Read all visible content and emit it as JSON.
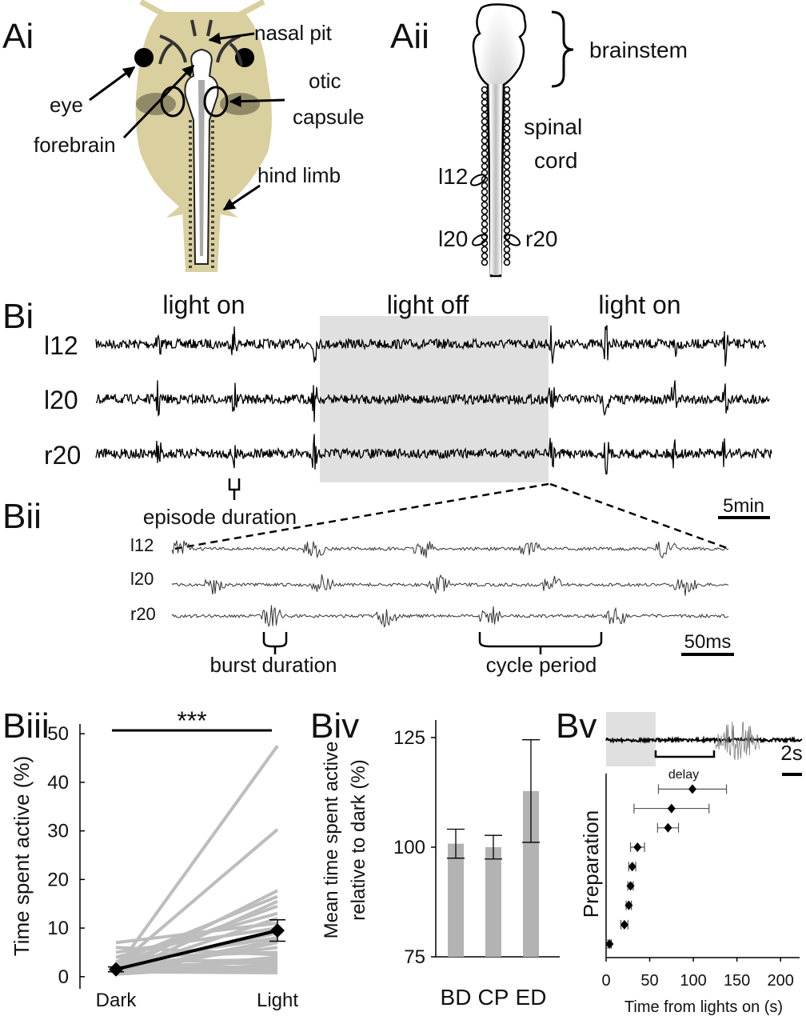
{
  "panel_labels": [
    "Ai",
    "Aii",
    "Bi",
    "Bii",
    "Biii",
    "Biv",
    "Bv"
  ],
  "diagram_ai": {
    "nasal_pit": "nasal pit",
    "eye": "eye",
    "otic_capsule": [
      "otic",
      "capsule"
    ],
    "forebrain": "forebrain",
    "hind_limb": "hind limb"
  },
  "diagram_aii": {
    "brainstem": "brainstem",
    "spinal_cord": [
      "spinal",
      "cord"
    ],
    "roots": [
      "l12",
      "l20",
      "r20"
    ]
  },
  "recording_bi": {
    "conditions": [
      "light on",
      "light off",
      "light on"
    ],
    "channels": [
      "l12",
      "l20",
      "r20"
    ],
    "annotation": "episode duration",
    "scale_bar": "5min"
  },
  "recording_bii": {
    "channels": [
      "l12",
      "l20",
      "r20"
    ],
    "annotations": [
      "burst duration",
      "cycle period"
    ],
    "scale_bar": "50ms"
  },
  "chart_data": [
    {
      "type": "line",
      "annotation": "***",
      "ylabel": "Time spent active (%)",
      "categories": [
        "Dark",
        "Light"
      ],
      "ylim": [
        -2.5,
        52
      ],
      "yticks": [
        0,
        10,
        20,
        30,
        40,
        50
      ],
      "preparations_color": "#bdbdbd",
      "preparations": [
        {
          "values": [
            1.5,
            47.5
          ]
        },
        {
          "values": [
            2,
            30.3
          ]
        },
        {
          "values": [
            1,
            17.7
          ]
        },
        {
          "values": [
            3,
            16.5
          ]
        },
        {
          "values": [
            0.5,
            15.5
          ]
        },
        {
          "values": [
            2.5,
            14.5
          ]
        },
        {
          "values": [
            4,
            13
          ]
        },
        {
          "values": [
            1,
            12
          ]
        },
        {
          "values": [
            7,
            11
          ]
        },
        {
          "values": [
            5,
            10
          ]
        },
        {
          "values": [
            2,
            9
          ]
        },
        {
          "values": [
            3,
            8
          ]
        },
        {
          "values": [
            1,
            7.5
          ]
        },
        {
          "values": [
            0.5,
            7
          ]
        },
        {
          "values": [
            2,
            6
          ]
        },
        {
          "values": [
            4,
            5
          ]
        },
        {
          "values": [
            6,
            4.5
          ]
        },
        {
          "values": [
            1,
            4
          ]
        },
        {
          "values": [
            3,
            3.5
          ]
        },
        {
          "values": [
            2,
            3
          ]
        },
        {
          "values": [
            0.5,
            2.5
          ]
        },
        {
          "values": [
            1.5,
            2
          ]
        },
        {
          "values": [
            3,
            1.5
          ]
        },
        {
          "values": [
            2,
            1
          ]
        },
        {
          "values": [
            1,
            0.8
          ]
        }
      ],
      "mean": {
        "color": "#000000",
        "values": [
          1.5,
          9.5
        ],
        "errors": [
          0.5,
          2.2
        ]
      }
    },
    {
      "type": "bar",
      "ylabel": [
        "Mean time spent active",
        "relative to dark (%)"
      ],
      "categories": [
        "BD",
        "CP",
        "ED"
      ],
      "values": [
        100.8,
        100,
        112.8
      ],
      "errors": [
        3.3,
        2.7,
        11.7
      ],
      "color": "#b3b3b3",
      "ylim": [
        75,
        129
      ],
      "yticks": [
        75,
        100,
        125
      ]
    },
    {
      "type": "scatter",
      "xlabel": "Time from lights on (s)",
      "ylabel": "Preparation",
      "x": [
        4,
        21,
        26,
        28,
        30,
        36,
        71,
        75,
        99
      ],
      "xerr": [
        2,
        4,
        3,
        3,
        4,
        8,
        12,
        43,
        39
      ],
      "y": [
        1,
        2,
        3,
        4,
        5,
        6,
        7,
        8,
        9
      ],
      "color": "#000000",
      "xlim": [
        0,
        220
      ],
      "xticks": [
        0,
        50,
        100,
        150,
        200
      ],
      "ylim": [
        0.3,
        9.8
      ],
      "inset": {
        "annotation": "delay",
        "scale_bar": "2s"
      }
    }
  ]
}
